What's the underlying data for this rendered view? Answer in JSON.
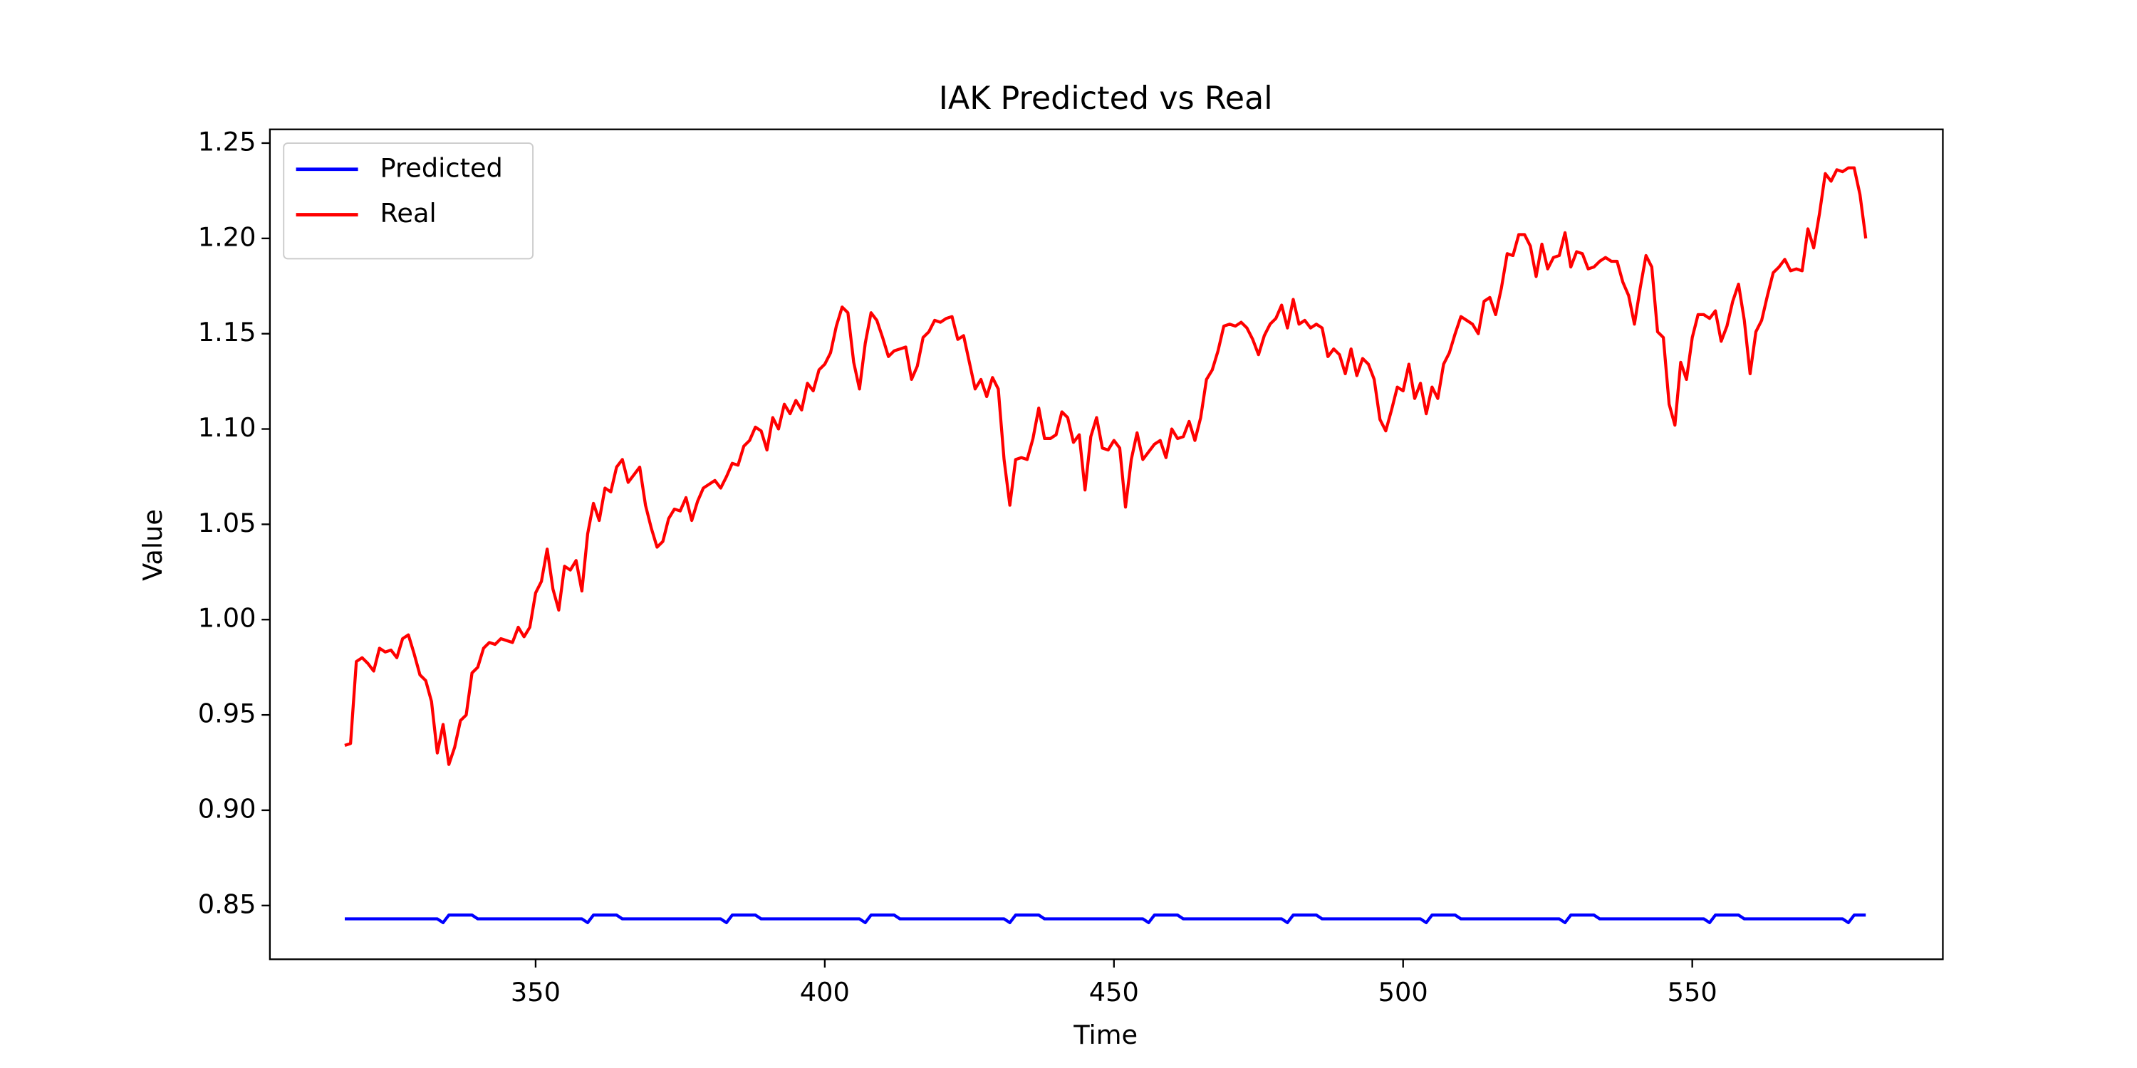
{
  "chart_data": {
    "type": "line",
    "title": "IAK Predicted vs Real",
    "xlabel": "Time",
    "ylabel": "Value",
    "x": [
      317,
      318,
      319,
      320,
      321,
      322,
      323,
      324,
      325,
      326,
      327,
      328,
      329,
      330,
      331,
      332,
      333,
      334,
      335,
      336,
      337,
      338,
      339,
      340,
      341,
      342,
      343,
      344,
      345,
      346,
      347,
      348,
      349,
      350,
      351,
      352,
      353,
      354,
      355,
      356,
      357,
      358,
      359,
      360,
      361,
      362,
      363,
      364,
      365,
      366,
      367,
      368,
      369,
      370,
      371,
      372,
      373,
      374,
      375,
      376,
      377,
      378,
      379,
      380,
      381,
      382,
      383,
      384,
      385,
      386,
      387,
      388,
      389,
      390,
      391,
      392,
      393,
      394,
      395,
      396,
      397,
      398,
      399,
      400,
      401,
      402,
      403,
      404,
      405,
      406,
      407,
      408,
      409,
      410,
      411,
      412,
      413,
      414,
      415,
      416,
      417,
      418,
      419,
      420,
      421,
      422,
      423,
      424,
      425,
      426,
      427,
      428,
      429,
      430,
      431,
      432,
      433,
      434,
      435,
      436,
      437,
      438,
      439,
      440,
      441,
      442,
      443,
      444,
      445,
      446,
      447,
      448,
      449,
      450,
      451,
      452,
      453,
      454,
      455,
      456,
      457,
      458,
      459,
      460,
      461,
      462,
      463,
      464,
      465,
      466,
      467,
      468,
      469,
      470,
      471,
      472,
      473,
      474,
      475,
      476,
      477,
      478,
      479,
      480,
      481,
      482,
      483,
      484,
      485,
      486,
      487,
      488,
      489,
      490,
      491,
      492,
      493,
      494,
      495,
      496,
      497,
      498,
      499,
      500,
      501,
      502,
      503,
      504,
      505,
      506,
      507,
      508,
      509,
      510,
      511,
      512,
      513,
      514,
      515,
      516,
      517,
      518,
      519,
      520,
      521,
      522,
      523,
      524,
      525,
      526,
      527,
      528,
      529,
      530,
      531,
      532,
      533,
      534,
      535,
      536,
      537,
      538,
      539,
      540,
      541,
      542,
      543,
      544,
      545,
      546,
      547,
      548,
      549,
      550,
      551,
      552,
      553,
      554,
      555,
      556,
      557,
      558,
      559,
      560,
      561,
      562,
      563,
      564,
      565,
      566,
      567,
      568,
      569,
      570,
      571,
      572,
      573,
      574,
      575,
      576,
      577,
      578,
      579,
      580
    ],
    "series": [
      {
        "name": "Predicted",
        "color": "#0000ff",
        "values": [
          0.843,
          0.843,
          0.843,
          0.843,
          0.843,
          0.843,
          0.843,
          0.843,
          0.843,
          0.843,
          0.843,
          0.843,
          0.843,
          0.843,
          0.843,
          0.843,
          0.843,
          0.841,
          0.845,
          0.845,
          0.845,
          0.845,
          0.845,
          0.843,
          0.843,
          0.843,
          0.843,
          0.843,
          0.843,
          0.843,
          0.843,
          0.843,
          0.843,
          0.843,
          0.843,
          0.843,
          0.843,
          0.843,
          0.843,
          0.843,
          0.843,
          0.843,
          0.841,
          0.845,
          0.845,
          0.845,
          0.845,
          0.845,
          0.843,
          0.843,
          0.843,
          0.843,
          0.843,
          0.843,
          0.843,
          0.843,
          0.843,
          0.843,
          0.843,
          0.843,
          0.843,
          0.843,
          0.843,
          0.843,
          0.843,
          0.843,
          0.841,
          0.845,
          0.845,
          0.845,
          0.845,
          0.845,
          0.843,
          0.843,
          0.843,
          0.843,
          0.843,
          0.843,
          0.843,
          0.843,
          0.843,
          0.843,
          0.843,
          0.843,
          0.843,
          0.843,
          0.843,
          0.843,
          0.843,
          0.843,
          0.841,
          0.845,
          0.845,
          0.845,
          0.845,
          0.845,
          0.843,
          0.843,
          0.843,
          0.843,
          0.843,
          0.843,
          0.843,
          0.843,
          0.843,
          0.843,
          0.843,
          0.843,
          0.843,
          0.843,
          0.843,
          0.843,
          0.843,
          0.843,
          0.843,
          0.841,
          0.845,
          0.845,
          0.845,
          0.845,
          0.845,
          0.843,
          0.843,
          0.843,
          0.843,
          0.843,
          0.843,
          0.843,
          0.843,
          0.843,
          0.843,
          0.843,
          0.843,
          0.843,
          0.843,
          0.843,
          0.843,
          0.843,
          0.843,
          0.841,
          0.845,
          0.845,
          0.845,
          0.845,
          0.845,
          0.843,
          0.843,
          0.843,
          0.843,
          0.843,
          0.843,
          0.843,
          0.843,
          0.843,
          0.843,
          0.843,
          0.843,
          0.843,
          0.843,
          0.843,
          0.843,
          0.843,
          0.843,
          0.841,
          0.845,
          0.845,
          0.845,
          0.845,
          0.845,
          0.843,
          0.843,
          0.843,
          0.843,
          0.843,
          0.843,
          0.843,
          0.843,
          0.843,
          0.843,
          0.843,
          0.843,
          0.843,
          0.843,
          0.843,
          0.843,
          0.843,
          0.843,
          0.841,
          0.845,
          0.845,
          0.845,
          0.845,
          0.845,
          0.843,
          0.843,
          0.843,
          0.843,
          0.843,
          0.843,
          0.843,
          0.843,
          0.843,
          0.843,
          0.843,
          0.843,
          0.843,
          0.843,
          0.843,
          0.843,
          0.843,
          0.843,
          0.841,
          0.845,
          0.845,
          0.845,
          0.845,
          0.845,
          0.843,
          0.843,
          0.843,
          0.843,
          0.843,
          0.843,
          0.843,
          0.843,
          0.843,
          0.843,
          0.843,
          0.843,
          0.843,
          0.843,
          0.843,
          0.843,
          0.843,
          0.843,
          0.843,
          0.841,
          0.845,
          0.845,
          0.845,
          0.845,
          0.845,
          0.843,
          0.843,
          0.843,
          0.843,
          0.843,
          0.843,
          0.843,
          0.843,
          0.843,
          0.843,
          0.843,
          0.843,
          0.843,
          0.843,
          0.843,
          0.843,
          0.843,
          0.843,
          0.841,
          0.845,
          0.845,
          0.845
        ]
      },
      {
        "name": "Real",
        "color": "#ff0000",
        "values": [
          0.934,
          0.935,
          0.978,
          0.98,
          0.977,
          0.973,
          0.985,
          0.983,
          0.984,
          0.98,
          0.99,
          0.992,
          0.982,
          0.971,
          0.968,
          0.957,
          0.93,
          0.945,
          0.924,
          0.933,
          0.947,
          0.95,
          0.972,
          0.975,
          0.985,
          0.988,
          0.987,
          0.99,
          0.989,
          0.988,
          0.996,
          0.991,
          0.996,
          1.014,
          1.02,
          1.037,
          1.016,
          1.005,
          1.028,
          1.026,
          1.031,
          1.015,
          1.045,
          1.061,
          1.052,
          1.069,
          1.067,
          1.08,
          1.084,
          1.072,
          1.076,
          1.08,
          1.06,
          1.048,
          1.038,
          1.041,
          1.053,
          1.058,
          1.057,
          1.064,
          1.052,
          1.062,
          1.069,
          1.071,
          1.073,
          1.069,
          1.075,
          1.082,
          1.081,
          1.091,
          1.094,
          1.101,
          1.099,
          1.089,
          1.106,
          1.1,
          1.113,
          1.108,
          1.115,
          1.11,
          1.124,
          1.12,
          1.131,
          1.134,
          1.14,
          1.154,
          1.164,
          1.161,
          1.135,
          1.121,
          1.145,
          1.161,
          1.157,
          1.148,
          1.138,
          1.141,
          1.142,
          1.143,
          1.126,
          1.133,
          1.148,
          1.151,
          1.157,
          1.156,
          1.158,
          1.159,
          1.147,
          1.149,
          1.135,
          1.121,
          1.126,
          1.117,
          1.127,
          1.121,
          1.084,
          1.06,
          1.084,
          1.085,
          1.084,
          1.095,
          1.111,
          1.095,
          1.095,
          1.097,
          1.109,
          1.106,
          1.093,
          1.097,
          1.068,
          1.096,
          1.106,
          1.09,
          1.089,
          1.094,
          1.09,
          1.059,
          1.084,
          1.098,
          1.084,
          1.088,
          1.092,
          1.094,
          1.085,
          1.1,
          1.095,
          1.096,
          1.104,
          1.094,
          1.106,
          1.126,
          1.131,
          1.141,
          1.154,
          1.155,
          1.154,
          1.156,
          1.153,
          1.147,
          1.139,
          1.149,
          1.155,
          1.158,
          1.165,
          1.153,
          1.168,
          1.155,
          1.157,
          1.153,
          1.155,
          1.153,
          1.138,
          1.142,
          1.139,
          1.129,
          1.142,
          1.128,
          1.137,
          1.134,
          1.126,
          1.105,
          1.099,
          1.11,
          1.122,
          1.12,
          1.134,
          1.116,
          1.124,
          1.108,
          1.122,
          1.116,
          1.134,
          1.14,
          1.15,
          1.159,
          1.157,
          1.155,
          1.15,
          1.167,
          1.169,
          1.16,
          1.174,
          1.192,
          1.191,
          1.202,
          1.202,
          1.196,
          1.18,
          1.197,
          1.184,
          1.19,
          1.191,
          1.203,
          1.185,
          1.193,
          1.192,
          1.184,
          1.185,
          1.188,
          1.19,
          1.188,
          1.188,
          1.177,
          1.17,
          1.155,
          1.174,
          1.191,
          1.185,
          1.151,
          1.148,
          1.113,
          1.102,
          1.135,
          1.126,
          1.148,
          1.16,
          1.16,
          1.158,
          1.162,
          1.146,
          1.154,
          1.167,
          1.176,
          1.157,
          1.129,
          1.151,
          1.157,
          1.17,
          1.182,
          1.185,
          1.189,
          1.183,
          1.184,
          1.183,
          1.205,
          1.195,
          1.213,
          1.234,
          1.23,
          1.236,
          1.235,
          1.237,
          1.237,
          1.223,
          1.2
        ]
      }
    ],
    "xlim": [
      304.05,
      593.33
    ],
    "xticks": [
      350,
      400,
      450,
      500,
      550
    ],
    "ylim": [
      0.8218,
      1.2572
    ],
    "yticks": [
      0.85,
      {
        "value": 0.9,
        "label": "0.90"
      },
      0.95,
      {
        "value": 1,
        "label": "1.00"
      },
      1.05,
      {
        "value": 1.1,
        "label": "1.10"
      },
      1.15,
      {
        "value": 1.2,
        "label": "1.20"
      },
      1.25
    ],
    "grid": false,
    "legend": "upper left"
  }
}
